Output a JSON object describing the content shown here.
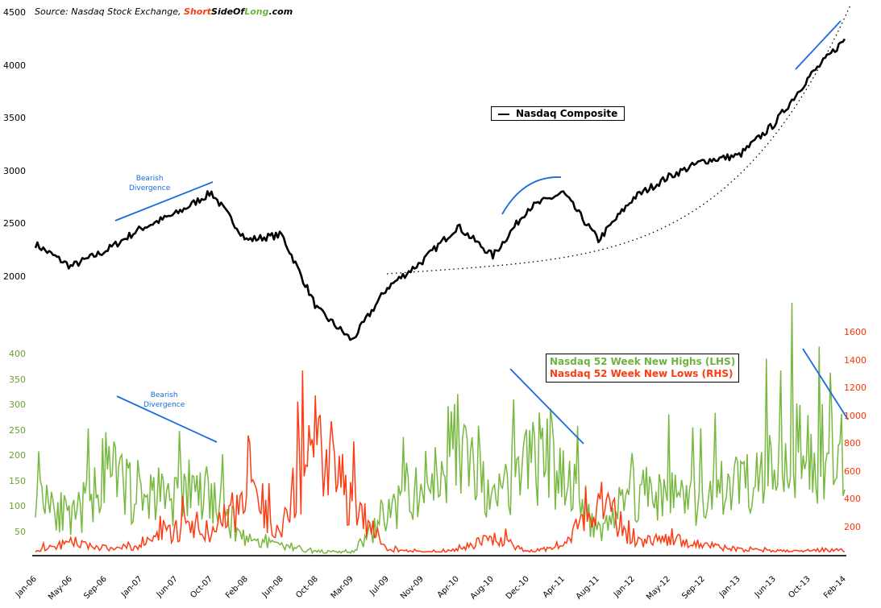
{
  "source": {
    "prefix": "Source: Nasdaq Stock Exchange, ",
    "brand_short": "Short",
    "brand_side": "SideOf",
    "brand_long": "Long",
    "brand_suffix": ".com"
  },
  "colors": {
    "composite": "#000000",
    "highs": "#77b83f",
    "lows": "#ff3b12",
    "annotation": "#1a6ae0",
    "trendline": "#000000"
  },
  "chart_data": [
    {
      "type": "line",
      "title": "Nasdaq Composite",
      "ylabel": "",
      "ylim": [
        1600,
        4500
      ],
      "yticks": [
        2000,
        2500,
        3000,
        3500,
        4000,
        4500
      ],
      "x": [
        "Jan-06",
        "May-06",
        "Sep-06",
        "Jan-07",
        "Jun-07",
        "Oct-07",
        "Feb-08",
        "Jun-08",
        "Oct-08",
        "Mar-09",
        "Jul-09",
        "Nov-09",
        "Apr-10",
        "Aug-10",
        "Dec-10",
        "Apr-11",
        "Aug-11",
        "Jan-12",
        "May-12",
        "Sep-12",
        "Jan-13",
        "Jun-13",
        "Oct-13",
        "Feb-14"
      ],
      "series": [
        {
          "name": "Nasdaq Composite",
          "values": [
            2310,
            2100,
            2250,
            2460,
            2600,
            2800,
            2350,
            2400,
            1700,
            1400,
            1900,
            2150,
            2480,
            2200,
            2650,
            2800,
            2350,
            2750,
            2950,
            3100,
            3150,
            3450,
            3900,
            4250
          ]
        }
      ],
      "annotations": [
        {
          "text": "Bearish Divergence",
          "type": "rising trendline over highs 2006-2007"
        },
        {
          "text": "",
          "type": "rounding top arc 2010-2011"
        },
        {
          "text": "",
          "type": "rising trendline over highs late 2013"
        },
        {
          "text": "",
          "type": "dotted parabolic support curve 2009-2014"
        }
      ],
      "legend": {
        "position": "center",
        "entries": [
          "Nasdaq Composite"
        ]
      }
    },
    {
      "type": "line",
      "title": "Nasdaq 52 Week New Highs vs New Lows",
      "ylim_left": [
        0,
        420
      ],
      "yticks_left": [
        50,
        100,
        150,
        200,
        250,
        300,
        350,
        400
      ],
      "ylim_right": [
        0,
        1600
      ],
      "yticks_right": [
        200,
        400,
        600,
        800,
        1000,
        1200,
        1400,
        1600
      ],
      "x": [
        "Jan-06",
        "May-06",
        "Sep-06",
        "Jan-07",
        "Jun-07",
        "Oct-07",
        "Feb-08",
        "Jun-08",
        "Oct-08",
        "Mar-09",
        "Jul-09",
        "Nov-09",
        "Apr-10",
        "Aug-10",
        "Dec-10",
        "Apr-11",
        "Aug-11",
        "Jan-12",
        "May-12",
        "Sep-12",
        "Jan-13",
        "Jun-13",
        "Oct-13",
        "Feb-14"
      ],
      "series": [
        {
          "name": "Nasdaq 52 Week New Highs (LHS)",
          "axis": "left",
          "values": [
            300,
            120,
            305,
            230,
            225,
            215,
            60,
            40,
            15,
            10,
            150,
            250,
            425,
            180,
            360,
            330,
            90,
            250,
            230,
            200,
            280,
            400,
            400,
            310
          ]
        },
        {
          "name": "Nasdaq 52 Week New Lows (RHS)",
          "axis": "right",
          "values": [
            50,
            150,
            80,
            100,
            350,
            300,
            750,
            400,
            1600,
            700,
            50,
            30,
            60,
            220,
            40,
            80,
            800,
            180,
            200,
            120,
            60,
            40,
            60,
            50
          ]
        }
      ],
      "annotations": [
        {
          "text": "Bearish Divergence",
          "type": "falling trendline over highs 2006-2007"
        },
        {
          "text": "",
          "type": "falling trendline over highs 2010-2011"
        },
        {
          "text": "",
          "type": "falling trendline over highs late 2013-2014"
        }
      ],
      "legend": {
        "position": "upper right",
        "entries": [
          "Nasdaq 52 Week New Highs (LHS)",
          "Nasdaq 52 Week New Lows (RHS)"
        ]
      }
    }
  ],
  "labels": {
    "legend_top": "Nasdaq Composite",
    "legend_highs": "Nasdaq 52 Week New Highs (LHS)",
    "legend_lows": "Nasdaq 52 Week New Lows (RHS)",
    "annot_top_1": "Bearish",
    "annot_top_2": "Divergence",
    "annot_bot_1": "Bearish",
    "annot_bot_2": "Divergence"
  },
  "axes": {
    "top_y": [
      "4500",
      "4000",
      "3500",
      "3000",
      "2500",
      "2000"
    ],
    "left_y": [
      "400",
      "350",
      "300",
      "250",
      "200",
      "150",
      "100",
      "50"
    ],
    "right_y": [
      "1600",
      "1400",
      "1200",
      "1000",
      "800",
      "600",
      "400",
      "200"
    ],
    "x": [
      "Jan-06",
      "May-06",
      "Sep-06",
      "Jan-07",
      "Jun-07",
      "Oct-07",
      "Feb-08",
      "Jun-08",
      "Oct-08",
      "Mar-09",
      "Jul-09",
      "Nov-09",
      "Apr-10",
      "Aug-10",
      "Dec-10",
      "Apr-11",
      "Aug-11",
      "Jan-12",
      "May-12",
      "Sep-12",
      "Jan-13",
      "Jun-13",
      "Oct-13",
      "Feb-14"
    ]
  }
}
